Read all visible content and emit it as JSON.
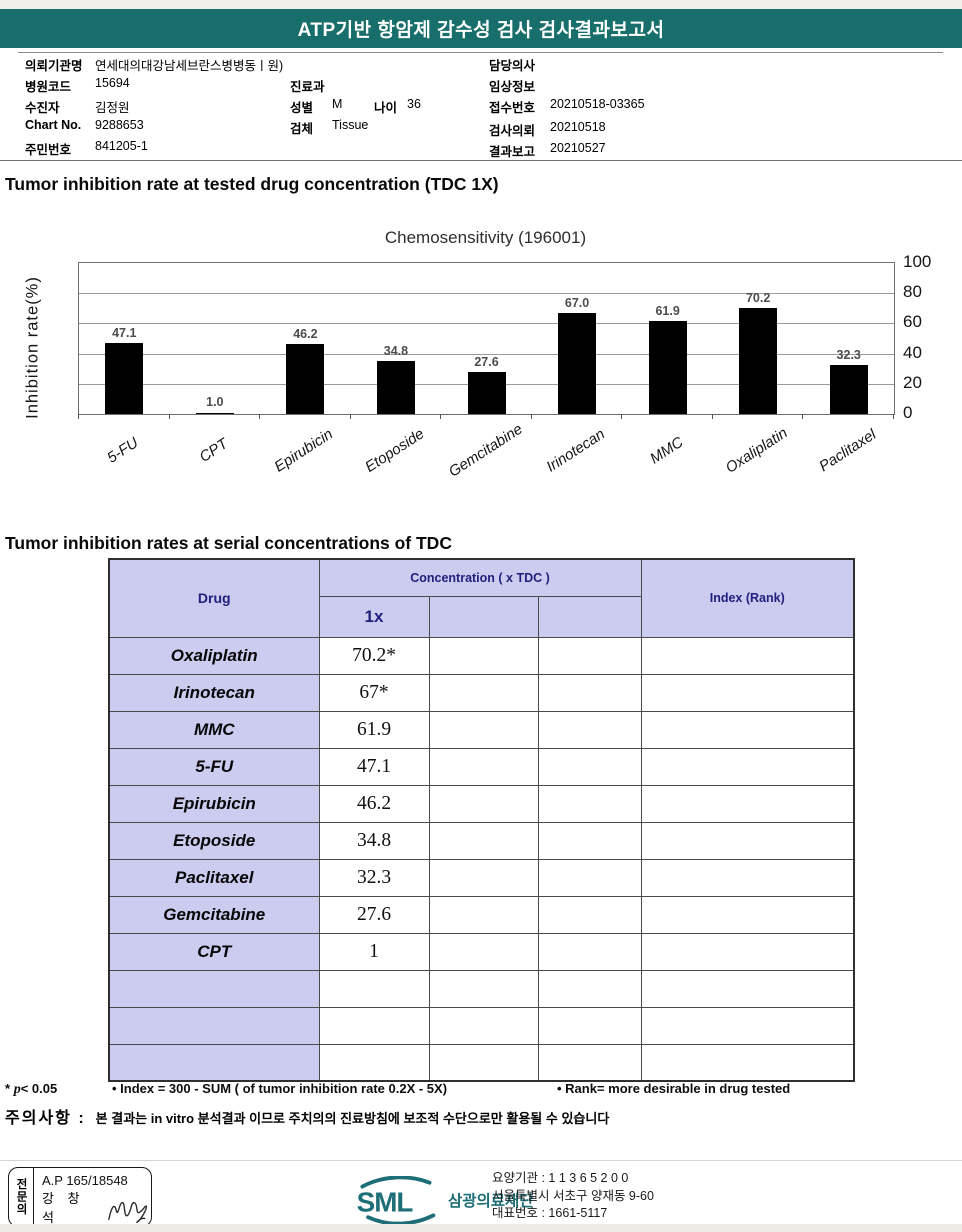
{
  "page": {
    "title": "ATP기반 항암제 감수성 검사 검사결과보고서"
  },
  "info": {
    "org_label": "의뢰기관명",
    "org_value": "연세대의대강남세브란스병병동ㅣ원)",
    "code_label": "병원코드",
    "code_value": "15694",
    "patient_label": "수진자",
    "patient_value": "김정원",
    "chart_label": "Chart No.",
    "chart_value": "9288653",
    "resident_label": "주민번호",
    "resident_value": "841205-1",
    "dept_label": "진료과",
    "sex_label": "성별",
    "sex_value": "M",
    "age_label": "나이",
    "age_value": "36",
    "specimen_label": "검체",
    "specimen_value": "Tissue",
    "doctor_label": "담당의사",
    "clinical_label": "임상정보",
    "accept_label": "접수번호",
    "accept_value": "20210518-03365",
    "request_label": "검사의뢰",
    "request_value": "20210518",
    "report_label": "결과보고",
    "report_value": "20210527"
  },
  "sections": {
    "chart_section_title": "Tumor inhibition rate at tested drug concentration (TDC 1X)",
    "table_section_title": "Tumor inhibition rates at serial concentrations of TDC"
  },
  "chart_data": {
    "type": "bar",
    "title": "Chemosensitivity (196001)",
    "categories": [
      "5-FU",
      "CPT",
      "Epirubicin",
      "Etoposide",
      "Gemcitabine",
      "Irinotecan",
      "MMC",
      "Oxaliplatin",
      "Paclitaxel"
    ],
    "values": [
      47.1,
      1,
      46.2,
      34.8,
      27.6,
      67,
      61.9,
      70.2,
      32.3
    ],
    "value_labels": [
      "47.1",
      "1.0",
      "46.2",
      "34.8",
      "27.6",
      "67.0",
      "61.9",
      "70.2",
      "32.3"
    ],
    "xlabel": "",
    "ylabel": "Inhibition rate(%)",
    "ylim": [
      0,
      100
    ],
    "yticks": [
      0,
      20,
      40,
      60,
      80,
      100
    ],
    "y_axis_side": "right",
    "grid": true,
    "bar_color": "#000000",
    "legend": "none"
  },
  "table": {
    "header": {
      "drug": "Drug",
      "concentration": "Concentration ( x TDC )",
      "sub_1x": "1x",
      "index": "Index (Rank)"
    },
    "rows": [
      {
        "drug": "Oxaliplatin",
        "v": "70.2*"
      },
      {
        "drug": "Irinotecan",
        "v": "67*"
      },
      {
        "drug": "MMC",
        "v": "61.9"
      },
      {
        "drug": "5-FU",
        "v": "47.1"
      },
      {
        "drug": "Epirubicin",
        "v": "46.2"
      },
      {
        "drug": "Etoposide",
        "v": "34.8"
      },
      {
        "drug": "Paclitaxel",
        "v": "32.3"
      },
      {
        "drug": "Gemcitabine",
        "v": "27.6"
      },
      {
        "drug": "CPT",
        "v": "1"
      },
      {
        "drug": "",
        "v": ""
      },
      {
        "drug": "",
        "v": ""
      },
      {
        "drug": "",
        "v": ""
      }
    ]
  },
  "notes": {
    "p_star": "*",
    "p_var": "p",
    "p_rest": "< 0.05",
    "index_note": "• Index = 300 - SUM ( of tumor inhibition rate 0.2X  -  5X)",
    "rank_note": "• Rank= more desirable in drug tested",
    "caution_label": "주의사항 :",
    "caution_text": "본 결과는 in vitro 분석결과 이므로 주치의의 진료방침에 보조적 수단으로만 활용될 수 있습니다"
  },
  "footer": {
    "stamp_role": "전문의",
    "stamp_cert": "A.P 165/18548",
    "stamp_name": "강 창 석",
    "logo_text": "SML",
    "logo_org": "삼광의료재단",
    "org_lines": [
      "요양기관 : 1 1 3 6 5 2 0 0",
      "서울특별시 서초구 양재동 9-60",
      "대표번호 : 1661-5117"
    ]
  },
  "colors": {
    "accent_teal": "#176e6a",
    "logo_teal": "#1d6d77",
    "lavender": "#cccbf0",
    "navy_header_text": "#20207e",
    "bar_black": "#000000"
  }
}
